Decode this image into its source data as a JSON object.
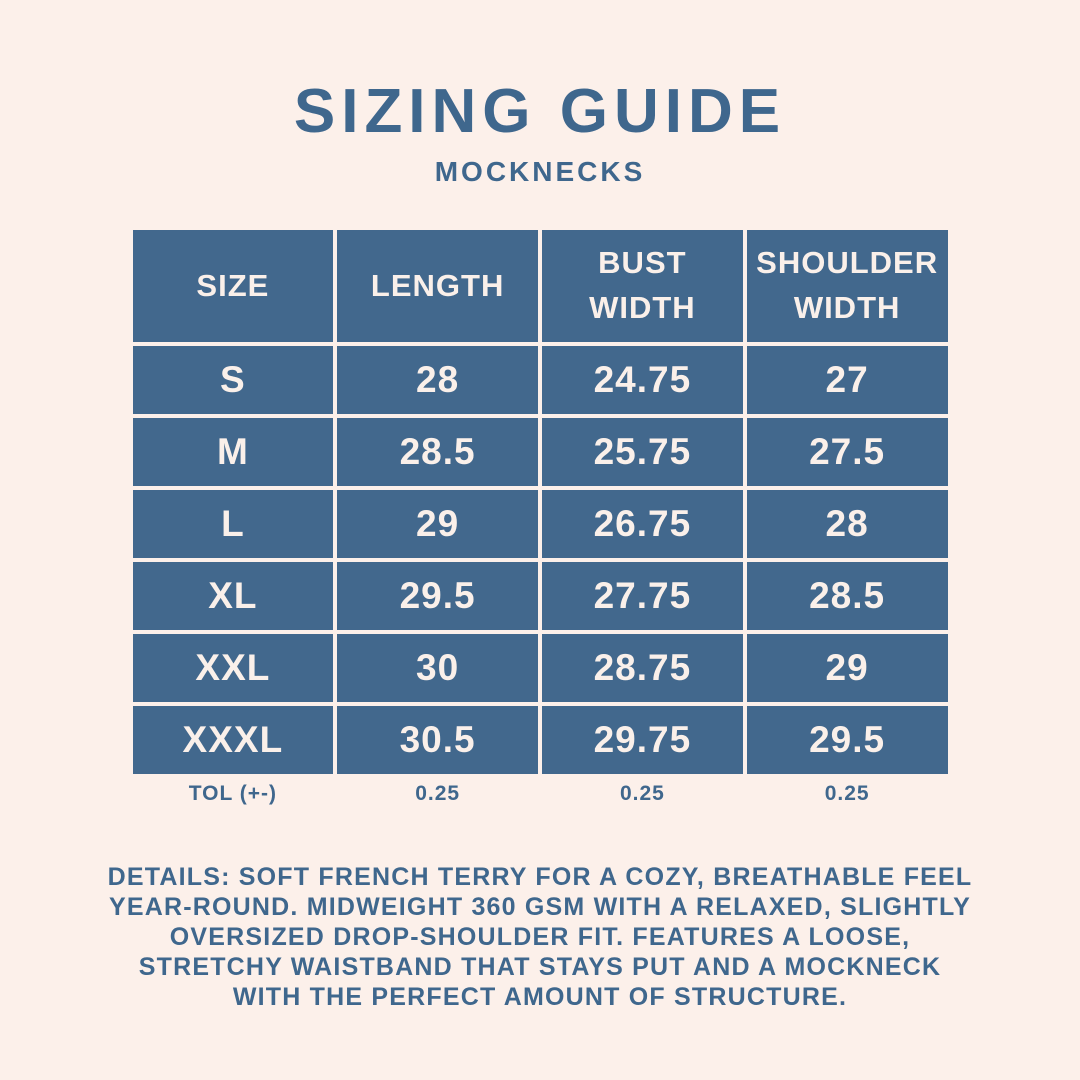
{
  "colors": {
    "background": "#FCF0EA",
    "table_blue": "#42688D",
    "cell_text": "#FAF0EA",
    "text_blue": "#3F678D"
  },
  "header": {
    "title": "SIZING GUIDE",
    "subtitle": "MOCKNECKS"
  },
  "table": {
    "columns": [
      "SIZE",
      "LENGTH",
      "BUST\nWIDTH",
      "SHOULDER\nWIDTH"
    ],
    "rows": [
      [
        "S",
        "28",
        "24.75",
        "27"
      ],
      [
        "M",
        "28.5",
        "25.75",
        "27.5"
      ],
      [
        "L",
        "29",
        "26.75",
        "28"
      ],
      [
        "XL",
        "29.5",
        "27.75",
        "28.5"
      ],
      [
        "XXL",
        "30",
        "28.75",
        "29"
      ],
      [
        "XXXL",
        "30.5",
        "29.75",
        "29.5"
      ]
    ],
    "tolerance": {
      "label": "TOL (+-)",
      "values": [
        "0.25",
        "0.25",
        "0.25"
      ]
    }
  },
  "details": "DETAILS: SOFT FRENCH TERRY FOR A COZY, BREATHABLE FEEL YEAR-ROUND. MIDWEIGHT 360 GSM WITH A RELAXED, SLIGHTLY OVERSIZED DROP-SHOULDER FIT. FEATURES A LOOSE, STRETCHY WAISTBAND THAT STAYS PUT AND A MOCKNECK WITH THE PERFECT AMOUNT OF STRUCTURE."
}
